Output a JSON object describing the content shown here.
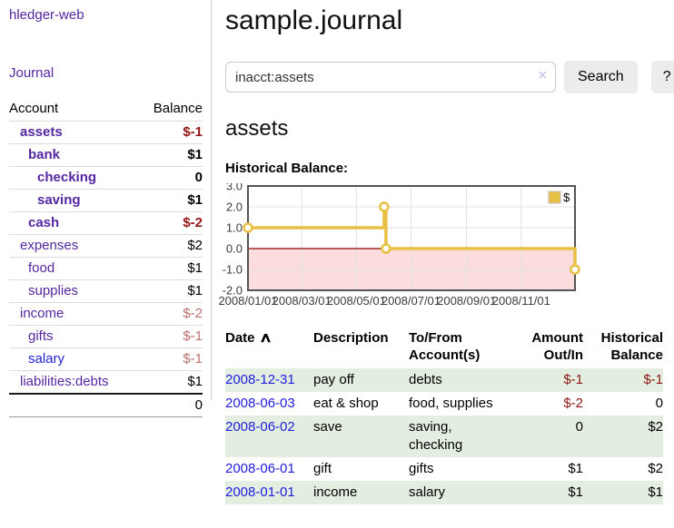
{
  "app": {
    "brand": "hledger-web"
  },
  "sidebar": {
    "journal_link": "Journal",
    "accounts_table": {
      "headers": {
        "account": "Account",
        "balance": "Balance"
      },
      "rows": [
        {
          "name": "assets",
          "balance": "$-1",
          "depth": 1,
          "bold": true,
          "negative": "strong"
        },
        {
          "name": "bank",
          "balance": "$1",
          "depth": 2,
          "bold": true,
          "negative": null
        },
        {
          "name": "checking",
          "balance": "0",
          "depth": 3,
          "bold": true,
          "negative": null
        },
        {
          "name": "saving",
          "balance": "$1",
          "depth": 3,
          "bold": true,
          "negative": null
        },
        {
          "name": "cash",
          "balance": "$-2",
          "depth": 2,
          "bold": true,
          "negative": "strong"
        },
        {
          "name": "expenses",
          "balance": "$2",
          "depth": 1,
          "bold": false,
          "negative": null
        },
        {
          "name": "food",
          "balance": "$1",
          "depth": 2,
          "bold": false,
          "negative": null
        },
        {
          "name": "supplies",
          "balance": "$1",
          "depth": 2,
          "bold": false,
          "negative": null
        },
        {
          "name": "income",
          "balance": "$-2",
          "depth": 1,
          "bold": false,
          "negative": "muted"
        },
        {
          "name": "gifts",
          "balance": "$-1",
          "depth": 2,
          "bold": false,
          "negative": "muted"
        },
        {
          "name": "salary",
          "balance": "$-1",
          "depth": 2,
          "bold": false,
          "negative": "muted"
        },
        {
          "name": "liabilities:debts",
          "balance": "$1",
          "depth": 1,
          "bold": false,
          "negative": null
        }
      ],
      "total": "0"
    }
  },
  "header": {
    "title": "sample.journal",
    "search": {
      "value": "inacct:assets",
      "clear_icon": "×",
      "search_button": "Search",
      "help_button": "?"
    }
  },
  "account_page": {
    "heading": "assets",
    "chart_label": "Historical Balance:"
  },
  "chart_data": {
    "type": "line",
    "title": "Historical Balance",
    "step": true,
    "series": [
      {
        "name": "$",
        "points": [
          [
            "2008-01-01",
            1
          ],
          [
            "2008-06-01",
            2
          ],
          [
            "2008-06-03",
            0
          ],
          [
            "2008-12-31",
            -1
          ]
        ]
      }
    ],
    "xlim": [
      "2008-01-01",
      "2008-12-31"
    ],
    "ylim": [
      -2,
      3
    ],
    "y_ticks": [
      3.0,
      2.0,
      1.0,
      0.0,
      -1.0,
      -2.0
    ],
    "x_ticks": [
      "2008/01/01",
      "2008/03/01",
      "2008/05/01",
      "2008/07/01",
      "2008/09/01",
      "2008/11/01"
    ],
    "legend": {
      "label": "$",
      "position": "top-right"
    },
    "grid": true,
    "colors": {
      "line": "#e8c043",
      "negative_region": "#fcdcdc",
      "zero_line": "#8b0000",
      "gridline": "#e2e2e2",
      "border": "#545454",
      "tick_text": "#3c3c3c"
    }
  },
  "register": {
    "headers": {
      "date": "Date",
      "sort_indicator": "∧",
      "description": "Description",
      "accounts": "To/From Account(s)",
      "amount": "Amount Out/In",
      "balance": "Historical Balance"
    },
    "rows": [
      {
        "date": "2008-12-31",
        "description": "pay off",
        "accounts": "debts",
        "amount": "$-1",
        "amount_negative": true,
        "balance": "$-1",
        "balance_negative": true
      },
      {
        "date": "2008-06-03",
        "description": "eat & shop",
        "accounts": "food, supplies",
        "amount": "$-2",
        "amount_negative": true,
        "balance": "0",
        "balance_negative": false
      },
      {
        "date": "2008-06-02",
        "description": "save",
        "accounts": "saving, checking",
        "amount": "0",
        "amount_negative": false,
        "balance": "$2",
        "balance_negative": false
      },
      {
        "date": "2008-06-01",
        "description": "gift",
        "accounts": "gifts",
        "amount": "$1",
        "amount_negative": false,
        "balance": "$2",
        "balance_negative": false
      },
      {
        "date": "2008-01-01",
        "description": "income",
        "accounts": "salary",
        "amount": "$1",
        "amount_negative": false,
        "balance": "$1",
        "balance_negative": false
      }
    ]
  }
}
